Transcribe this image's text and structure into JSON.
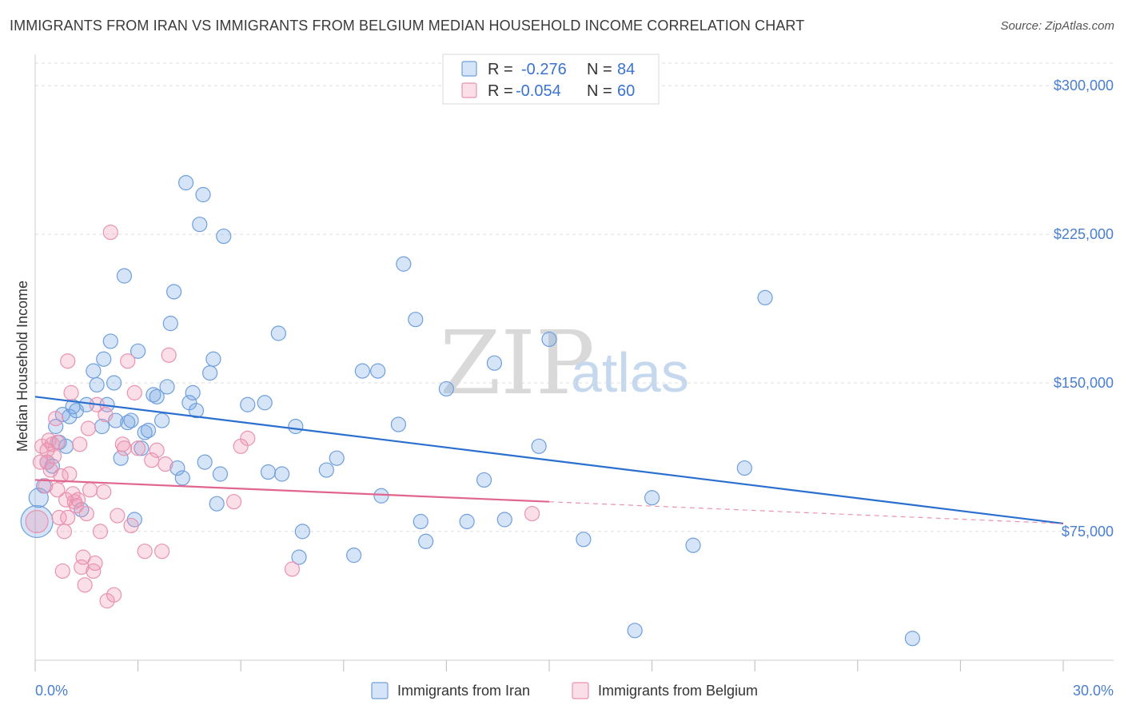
{
  "title": "IMMIGRANTS FROM IRAN VS IMMIGRANTS FROM BELGIUM MEDIAN HOUSEHOLD INCOME CORRELATION CHART",
  "source": "Source: ZipAtlas.com",
  "watermark": {
    "zip": "ZIP",
    "atlas": "atlas"
  },
  "colors": {
    "iran_fill": "rgba(120,165,230,0.30)",
    "iran_stroke": "#6f9fdc",
    "iran_line": "#2a6fd0",
    "belgium_fill": "rgba(240,150,180,0.30)",
    "belgium_stroke": "#e893b0",
    "belgium_line": "#e06690",
    "tick_label": "#4a7fcf",
    "grid": "#dddddd"
  },
  "legend": {
    "rows": [
      {
        "r_label": "R =",
        "r_value": "-0.276",
        "n_label": "N =",
        "n_value": "84"
      },
      {
        "r_label": "R =",
        "r_value": "-0.054",
        "n_label": "N =",
        "n_value": "60"
      }
    ]
  },
  "bottom_legend": [
    "Immigrants from Iran",
    "Immigrants from Belgium"
  ],
  "chart_data": {
    "type": "scatter",
    "title": "IMMIGRANTS FROM IRAN VS IMMIGRANTS FROM BELGIUM MEDIAN HOUSEHOLD INCOME CORRELATION CHART",
    "xlabel": "",
    "ylabel": "Median Household Income",
    "xlim": [
      0,
      30
    ],
    "ylim": [
      10000,
      315000
    ],
    "y_ticks": [
      75000,
      150000,
      225000,
      300000
    ],
    "y_tick_labels": [
      "$75,000",
      "$150,000",
      "$225,000",
      "$300,000"
    ],
    "x_tick_labels": [
      "0.0%",
      "30.0%"
    ],
    "x_label_positions": [
      0,
      30
    ],
    "x_minor_ticks": [
      3,
      6,
      9,
      12,
      15,
      18,
      21,
      24,
      27,
      30
    ],
    "grid": true,
    "series": [
      {
        "name": "Immigrants from Iran",
        "r": -0.276,
        "n": 84,
        "trend": {
          "x": [
            0,
            30
          ],
          "y": [
            143000,
            79000
          ]
        },
        "points": [
          [
            0.05,
            80000,
            20
          ],
          [
            0.1,
            92000,
            12
          ],
          [
            0.25,
            98000,
            9
          ],
          [
            0.35,
            110000,
            9
          ],
          [
            0.5,
            108000,
            9
          ],
          [
            0.6,
            128000,
            9
          ],
          [
            0.7,
            120000,
            9
          ],
          [
            0.8,
            134000,
            9
          ],
          [
            0.9,
            118000,
            9
          ],
          [
            1.0,
            133000,
            9
          ],
          [
            1.1,
            138000,
            9
          ],
          [
            1.2,
            136000,
            9
          ],
          [
            1.35,
            86000,
            9
          ],
          [
            1.5,
            139000,
            9
          ],
          [
            1.7,
            156000,
            9
          ],
          [
            1.8,
            149000,
            9
          ],
          [
            1.95,
            128000,
            9
          ],
          [
            2.0,
            162000,
            9
          ],
          [
            2.1,
            139000,
            9
          ],
          [
            2.2,
            171000,
            9
          ],
          [
            2.3,
            150000,
            9
          ],
          [
            2.35,
            131000,
            9
          ],
          [
            2.5,
            112000,
            9
          ],
          [
            2.6,
            204000,
            9
          ],
          [
            2.7,
            130000,
            9
          ],
          [
            2.8,
            131000,
            9
          ],
          [
            2.9,
            81000,
            9
          ],
          [
            3.0,
            166000,
            9
          ],
          [
            3.1,
            117000,
            9
          ],
          [
            3.2,
            125000,
            9
          ],
          [
            3.3,
            126000,
            9
          ],
          [
            3.45,
            144000,
            9
          ],
          [
            3.55,
            143000,
            9
          ],
          [
            3.7,
            131000,
            9
          ],
          [
            3.85,
            148000,
            9
          ],
          [
            3.95,
            180000,
            9
          ],
          [
            4.05,
            196000,
            9
          ],
          [
            4.15,
            107000,
            9
          ],
          [
            4.3,
            102000,
            9
          ],
          [
            4.4,
            251000,
            9
          ],
          [
            4.5,
            140000,
            9
          ],
          [
            4.6,
            145000,
            9
          ],
          [
            4.7,
            136000,
            9
          ],
          [
            4.8,
            230000,
            9
          ],
          [
            4.9,
            245000,
            9
          ],
          [
            4.95,
            110000,
            9
          ],
          [
            5.1,
            155000,
            9
          ],
          [
            5.2,
            162000,
            9
          ],
          [
            5.3,
            89000,
            9
          ],
          [
            5.4,
            104000,
            9
          ],
          [
            5.5,
            224000,
            9
          ],
          [
            6.2,
            139000,
            9
          ],
          [
            6.7,
            140000,
            9
          ],
          [
            6.8,
            105000,
            9
          ],
          [
            7.1,
            175000,
            9
          ],
          [
            7.2,
            104000,
            9
          ],
          [
            7.6,
            128000,
            9
          ],
          [
            7.7,
            62000,
            9
          ],
          [
            7.8,
            75000,
            9
          ],
          [
            8.5,
            106000,
            9
          ],
          [
            8.8,
            112000,
            9
          ],
          [
            9.3,
            63000,
            9
          ],
          [
            9.55,
            156000,
            9
          ],
          [
            10.0,
            156000,
            9
          ],
          [
            10.1,
            93000,
            9
          ],
          [
            10.6,
            129000,
            9
          ],
          [
            10.75,
            210000,
            9
          ],
          [
            11.1,
            182000,
            9
          ],
          [
            11.25,
            80000,
            9
          ],
          [
            11.4,
            70000,
            9
          ],
          [
            12.0,
            147000,
            9
          ],
          [
            12.6,
            80000,
            9
          ],
          [
            13.1,
            101000,
            9
          ],
          [
            13.4,
            160000,
            9
          ],
          [
            13.7,
            81000,
            9
          ],
          [
            14.7,
            118000,
            9
          ],
          [
            15.0,
            172000,
            9
          ],
          [
            16.0,
            71000,
            9
          ],
          [
            17.5,
            25000,
            9
          ],
          [
            18.0,
            92000,
            9
          ],
          [
            19.2,
            68000,
            9
          ],
          [
            20.7,
            107000,
            9
          ],
          [
            21.3,
            193000,
            9
          ],
          [
            25.6,
            21000,
            9
          ]
        ]
      },
      {
        "name": "Immigrants from Belgium",
        "r": -0.054,
        "n": 60,
        "trend": {
          "x": [
            0,
            15
          ],
          "y": [
            101000,
            90000
          ]
        },
        "trend_ext": {
          "x": [
            15,
            30
          ],
          "y": [
            90000,
            79000
          ]
        },
        "points": [
          [
            0.05,
            80000,
            14
          ],
          [
            0.15,
            110000,
            9
          ],
          [
            0.2,
            118000,
            9
          ],
          [
            0.3,
            98000,
            9
          ],
          [
            0.35,
            116000,
            9
          ],
          [
            0.4,
            121000,
            9
          ],
          [
            0.45,
            106000,
            9
          ],
          [
            0.5,
            119000,
            9
          ],
          [
            0.55,
            113000,
            9
          ],
          [
            0.6,
            132000,
            9
          ],
          [
            0.65,
            96000,
            9
          ],
          [
            0.7,
            82000,
            9
          ],
          [
            0.75,
            103000,
            9
          ],
          [
            0.8,
            55000,
            9
          ],
          [
            0.85,
            75000,
            9
          ],
          [
            0.9,
            91000,
            9
          ],
          [
            0.95,
            82000,
            9
          ],
          [
            1.0,
            104000,
            9
          ],
          [
            1.05,
            145000,
            9
          ],
          [
            1.1,
            94000,
            9
          ],
          [
            1.15,
            90000,
            9
          ],
          [
            1.2,
            88000,
            9
          ],
          [
            1.25,
            91000,
            9
          ],
          [
            1.3,
            119000,
            9
          ],
          [
            1.35,
            57000,
            9
          ],
          [
            1.4,
            62000,
            9
          ],
          [
            1.45,
            48000,
            9
          ],
          [
            1.5,
            84000,
            9
          ],
          [
            1.6,
            96000,
            9
          ],
          [
            1.7,
            55000,
            9
          ],
          [
            1.75,
            59000,
            9
          ],
          [
            1.8,
            139000,
            9
          ],
          [
            1.9,
            75000,
            9
          ],
          [
            2.0,
            95000,
            9
          ],
          [
            2.05,
            134000,
            9
          ],
          [
            2.1,
            40000,
            9
          ],
          [
            2.2,
            226000,
            9
          ],
          [
            2.3,
            43000,
            9
          ],
          [
            2.4,
            83000,
            9
          ],
          [
            2.55,
            119000,
            9
          ],
          [
            2.6,
            117000,
            9
          ],
          [
            2.7,
            161000,
            9
          ],
          [
            2.8,
            78000,
            9
          ],
          [
            2.9,
            145000,
            9
          ],
          [
            3.0,
            117000,
            9
          ],
          [
            3.2,
            65000,
            9
          ],
          [
            3.4,
            111000,
            9
          ],
          [
            3.55,
            116000,
            9
          ],
          [
            3.7,
            65000,
            9
          ],
          [
            3.8,
            109000,
            9
          ],
          [
            3.9,
            164000,
            9
          ],
          [
            0.35,
            110000,
            9
          ],
          [
            0.65,
            120000,
            9
          ],
          [
            0.95,
            161000,
            9
          ],
          [
            1.55,
            127000,
            9
          ],
          [
            6.0,
            118000,
            9
          ],
          [
            6.2,
            122000,
            9
          ],
          [
            7.5,
            56000,
            9
          ],
          [
            14.5,
            84000,
            9
          ],
          [
            5.8,
            90000,
            9
          ]
        ]
      }
    ]
  }
}
